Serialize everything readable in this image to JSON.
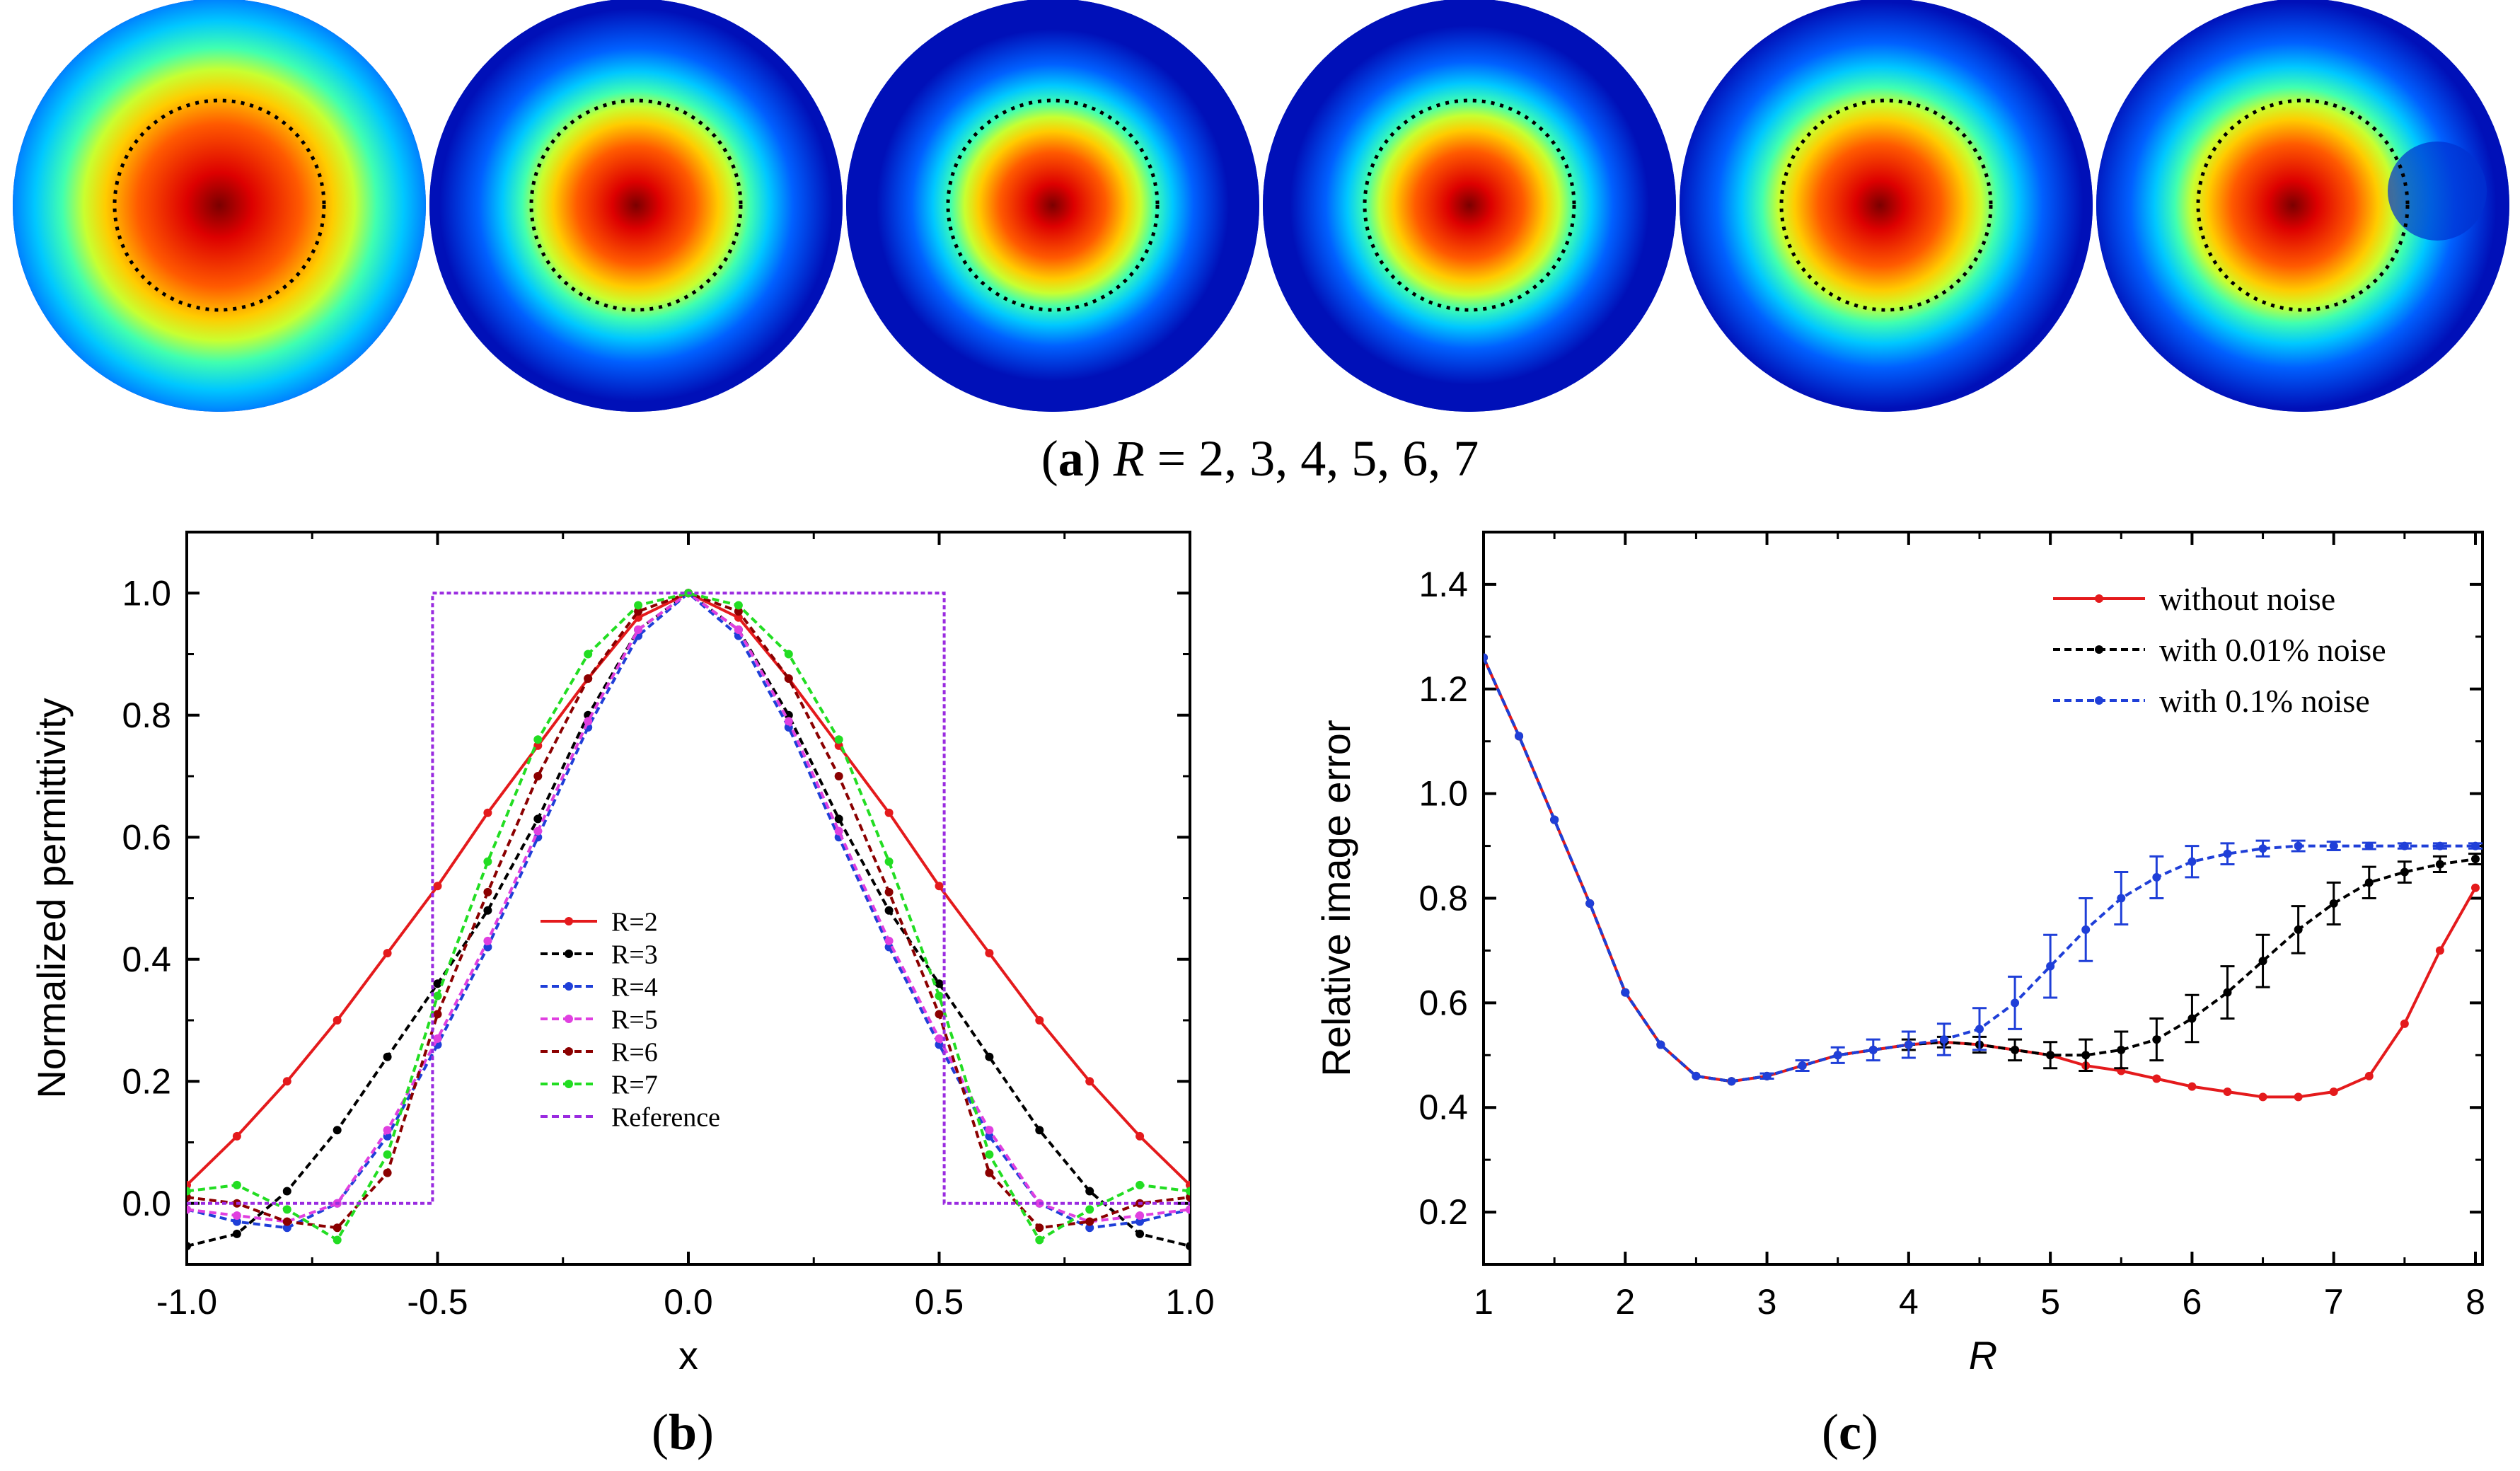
{
  "caption_a": {
    "open": "(",
    "letter": "a",
    "close": ")",
    "var": "R",
    "rest": " = 2, 3, 4, 5, 6, 7"
  },
  "caption_b": {
    "open": "(",
    "letter": "b",
    "close": ")"
  },
  "caption_c": {
    "open": "(",
    "letter": "c",
    "close": ")"
  },
  "colors": {
    "R=2": "#e41a1c",
    "R=3": "#000000",
    "R=4": "#1f3fd8",
    "R=5": "#e040e0",
    "R=6": "#8b0000",
    "R=7": "#22dd22",
    "Reference": "#9a2be0",
    "without noise": "#e41a1c",
    "with 0.01% noise": "#000000",
    "with 0.1% noise": "#1f3fd8"
  },
  "chart_data": [
    {
      "id": "a",
      "type": "heatmap",
      "panels": [
        {
          "R": 2,
          "peak_radius": 0.8,
          "skew": 0.0,
          "blob": false
        },
        {
          "R": 3,
          "peak_radius": 0.58,
          "skew": 0.0,
          "blob": false
        },
        {
          "R": 4,
          "peak_radius": 0.52,
          "skew": 0.0,
          "blob": false
        },
        {
          "R": 5,
          "peak_radius": 0.53,
          "skew": 0.0,
          "blob": false
        },
        {
          "R": 6,
          "peak_radius": 0.6,
          "skew": 0.05,
          "blob": false
        },
        {
          "R": 7,
          "peak_radius": 0.6,
          "skew": 0.08,
          "blob": true
        }
      ]
    },
    {
      "id": "b",
      "type": "line",
      "xlabel": "x",
      "ylabel": "Normalized permittivity",
      "xlim": [
        -1.0,
        1.0
      ],
      "ylim": [
        -0.1,
        1.1
      ],
      "xticks": [
        "-1.0",
        "-0.5",
        "0.0",
        "0.5",
        "1.0"
      ],
      "yticks": [
        "0.0",
        "0.2",
        "0.4",
        "0.6",
        "0.8",
        "1.0"
      ],
      "series": [
        {
          "name": "R=2",
          "x": [
            -1.0,
            -0.9,
            -0.8,
            -0.7,
            -0.6,
            -0.5,
            -0.4,
            -0.3,
            -0.2,
            -0.1,
            0.0,
            0.1,
            0.2,
            0.3,
            0.4,
            0.5,
            0.6,
            0.7,
            0.8,
            0.9,
            1.0
          ],
          "y": [
            0.03,
            0.11,
            0.2,
            0.3,
            0.41,
            0.52,
            0.64,
            0.75,
            0.86,
            0.96,
            1.0,
            0.96,
            0.86,
            0.75,
            0.64,
            0.52,
            0.41,
            0.3,
            0.2,
            0.11,
            0.03
          ]
        },
        {
          "name": "R=3",
          "x": [
            -1.0,
            -0.9,
            -0.8,
            -0.7,
            -0.6,
            -0.5,
            -0.4,
            -0.3,
            -0.2,
            -0.1,
            0.0,
            0.1,
            0.2,
            0.3,
            0.4,
            0.5,
            0.6,
            0.7,
            0.8,
            0.9,
            1.0
          ],
          "y": [
            -0.07,
            -0.05,
            0.02,
            0.12,
            0.24,
            0.36,
            0.48,
            0.63,
            0.8,
            0.94,
            1.0,
            0.94,
            0.8,
            0.63,
            0.48,
            0.36,
            0.24,
            0.12,
            0.02,
            -0.05,
            -0.07
          ]
        },
        {
          "name": "R=4",
          "x": [
            -1.0,
            -0.9,
            -0.8,
            -0.7,
            -0.6,
            -0.5,
            -0.4,
            -0.3,
            -0.2,
            -0.1,
            0.0,
            0.1,
            0.2,
            0.3,
            0.4,
            0.5,
            0.6,
            0.7,
            0.8,
            0.9,
            1.0
          ],
          "y": [
            -0.01,
            -0.03,
            -0.04,
            0.0,
            0.11,
            0.26,
            0.42,
            0.6,
            0.78,
            0.93,
            1.0,
            0.93,
            0.78,
            0.6,
            0.42,
            0.26,
            0.11,
            0.0,
            -0.04,
            -0.03,
            -0.01
          ]
        },
        {
          "name": "R=5",
          "x": [
            -1.0,
            -0.9,
            -0.8,
            -0.7,
            -0.6,
            -0.5,
            -0.4,
            -0.3,
            -0.2,
            -0.1,
            0.0,
            0.1,
            0.2,
            0.3,
            0.4,
            0.5,
            0.6,
            0.7,
            0.8,
            0.9,
            1.0
          ],
          "y": [
            -0.01,
            -0.02,
            -0.03,
            0.0,
            0.12,
            0.27,
            0.43,
            0.61,
            0.79,
            0.94,
            1.0,
            0.94,
            0.79,
            0.61,
            0.43,
            0.27,
            0.12,
            0.0,
            -0.03,
            -0.02,
            -0.01
          ]
        },
        {
          "name": "R=6",
          "x": [
            -1.0,
            -0.9,
            -0.8,
            -0.7,
            -0.6,
            -0.5,
            -0.4,
            -0.3,
            -0.2,
            -0.1,
            0.0,
            0.1,
            0.2,
            0.3,
            0.4,
            0.5,
            0.6,
            0.7,
            0.8,
            0.9,
            1.0
          ],
          "y": [
            0.01,
            0.0,
            -0.03,
            -0.04,
            0.05,
            0.31,
            0.51,
            0.7,
            0.86,
            0.97,
            1.0,
            0.97,
            0.86,
            0.7,
            0.51,
            0.31,
            0.05,
            -0.04,
            -0.03,
            0.0,
            0.01
          ]
        },
        {
          "name": "R=7",
          "x": [
            -1.0,
            -0.9,
            -0.8,
            -0.7,
            -0.6,
            -0.5,
            -0.4,
            -0.3,
            -0.2,
            -0.1,
            0.0,
            0.1,
            0.2,
            0.3,
            0.4,
            0.5,
            0.6,
            0.7,
            0.8,
            0.9,
            1.0
          ],
          "y": [
            0.02,
            0.03,
            -0.01,
            -0.06,
            0.08,
            0.34,
            0.56,
            0.76,
            0.9,
            0.98,
            1.0,
            0.98,
            0.9,
            0.76,
            0.56,
            0.34,
            0.08,
            -0.06,
            -0.01,
            0.03,
            0.02
          ]
        },
        {
          "name": "Reference",
          "x": [
            -1.0,
            -0.51,
            -0.51,
            0.51,
            0.51,
            1.0
          ],
          "y": [
            0.0,
            0.0,
            1.0,
            1.0,
            0.0,
            0.0
          ]
        }
      ],
      "legend": "center"
    },
    {
      "id": "c",
      "type": "line",
      "xlabel": "R",
      "ylabel": "Relative image error",
      "xlim": [
        1,
        8.05
      ],
      "ylim": [
        0.1,
        1.5
      ],
      "xticks": [
        "1",
        "2",
        "3",
        "4",
        "5",
        "6",
        "7",
        "8"
      ],
      "yticks": [
        "0.2",
        "0.4",
        "0.6",
        "0.8",
        "1.0",
        "1.2",
        "1.4"
      ],
      "series": [
        {
          "name": "without noise",
          "x": [
            1,
            1.25,
            1.5,
            1.75,
            2,
            2.25,
            2.5,
            2.75,
            3,
            3.25,
            3.5,
            3.75,
            4,
            4.25,
            4.5,
            4.75,
            5,
            5.25,
            5.5,
            5.75,
            6,
            6.25,
            6.5,
            6.75,
            7,
            7.25,
            7.5,
            7.75,
            8
          ],
          "y": [
            1.26,
            1.11,
            0.95,
            0.79,
            0.62,
            0.52,
            0.46,
            0.45,
            0.46,
            0.48,
            0.5,
            0.51,
            0.52,
            0.525,
            0.52,
            0.51,
            0.5,
            0.48,
            0.47,
            0.455,
            0.44,
            0.43,
            0.42,
            0.42,
            0.43,
            0.46,
            0.56,
            0.7,
            0.82
          ]
        },
        {
          "name": "with 0.01% noise",
          "x": [
            1,
            1.25,
            1.5,
            1.75,
            2,
            2.25,
            2.5,
            2.75,
            3,
            3.25,
            3.5,
            3.75,
            4,
            4.25,
            4.5,
            4.75,
            5,
            5.25,
            5.5,
            5.75,
            6,
            6.25,
            6.5,
            6.75,
            7,
            7.25,
            7.5,
            7.75,
            8
          ],
          "y": [
            1.26,
            1.11,
            0.95,
            0.79,
            0.62,
            0.52,
            0.46,
            0.45,
            0.46,
            0.48,
            0.5,
            0.51,
            0.52,
            0.525,
            0.52,
            0.51,
            0.5,
            0.5,
            0.51,
            0.53,
            0.57,
            0.62,
            0.68,
            0.74,
            0.79,
            0.83,
            0.85,
            0.865,
            0.875
          ],
          "err": [
            0,
            0,
            0,
            0,
            0,
            0,
            0,
            0,
            0,
            0,
            0,
            0,
            0.01,
            0.01,
            0.015,
            0.02,
            0.025,
            0.03,
            0.035,
            0.04,
            0.045,
            0.05,
            0.05,
            0.045,
            0.04,
            0.03,
            0.02,
            0.015,
            0.01
          ]
        },
        {
          "name": "with 0.1% noise",
          "x": [
            1,
            1.25,
            1.5,
            1.75,
            2,
            2.25,
            2.5,
            2.75,
            3,
            3.25,
            3.5,
            3.75,
            4,
            4.25,
            4.5,
            4.75,
            5,
            5.25,
            5.5,
            5.75,
            6,
            6.25,
            6.5,
            6.75,
            7,
            7.25,
            7.5,
            7.75,
            8
          ],
          "y": [
            1.26,
            1.11,
            0.95,
            0.79,
            0.62,
            0.52,
            0.46,
            0.45,
            0.46,
            0.48,
            0.5,
            0.51,
            0.52,
            0.53,
            0.55,
            0.6,
            0.67,
            0.74,
            0.8,
            0.84,
            0.87,
            0.885,
            0.895,
            0.9,
            0.9,
            0.9,
            0.9,
            0.9,
            0.9
          ],
          "err": [
            0,
            0,
            0,
            0,
            0,
            0,
            0,
            0,
            0.005,
            0.01,
            0.015,
            0.02,
            0.025,
            0.03,
            0.04,
            0.05,
            0.06,
            0.06,
            0.05,
            0.04,
            0.03,
            0.02,
            0.015,
            0.01,
            0.008,
            0.006,
            0.005,
            0.005,
            0.005
          ]
        }
      ],
      "legend": "top-right"
    }
  ]
}
